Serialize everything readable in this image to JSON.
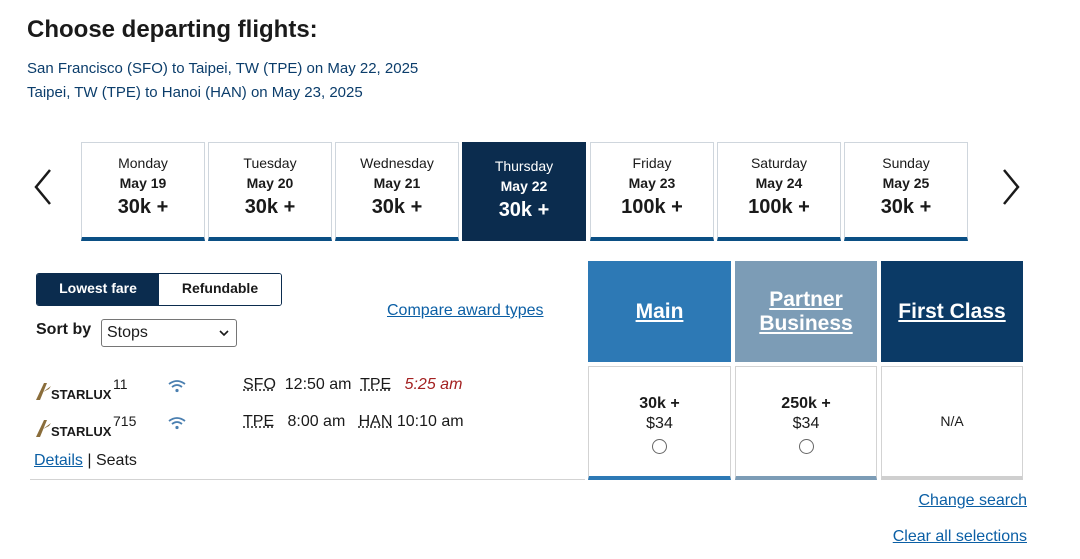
{
  "page": {
    "title": "Choose departing flights:",
    "routes": [
      "San Francisco (SFO) to Taipei, TW (TPE) on May 22, 2025",
      "Taipei, TW (TPE) to Hanoi (HAN) on May 23, 2025"
    ]
  },
  "date_nav": {
    "prev_icon": "chevron-left-icon",
    "next_icon": "chevron-right-icon",
    "selected_index": 3,
    "days": [
      {
        "day": "Monday",
        "date": "May 19",
        "price": "30k +"
      },
      {
        "day": "Tuesday",
        "date": "May 20",
        "price": "30k +"
      },
      {
        "day": "Wednesday",
        "date": "May 21",
        "price": "30k +"
      },
      {
        "day": "Thursday",
        "date": "May 22",
        "price": "30k +"
      },
      {
        "day": "Friday",
        "date": "May 23",
        "price": "100k +"
      },
      {
        "day": "Saturday",
        "date": "May 24",
        "price": "100k +"
      },
      {
        "day": "Sunday",
        "date": "May 25",
        "price": "30k +"
      }
    ]
  },
  "filters": {
    "fare_options": [
      "Lowest fare",
      "Refundable"
    ],
    "active_fare": "Lowest fare",
    "sort_label": "Sort by",
    "sort_value": "Stops"
  },
  "compare_link": "Compare award types",
  "cabins": [
    {
      "label": "Main",
      "color": "#2d79b5"
    },
    {
      "label": "Partner Business",
      "color": "#7c9cb6"
    },
    {
      "label": "First Class",
      "color": "#0b3a66"
    }
  ],
  "flight": {
    "segments": [
      {
        "airline": "STARLUX",
        "flight_number": "11",
        "wifi_icon": "wifi-icon",
        "from": "SFO",
        "depart": "12:50 am",
        "to": "TPE",
        "arrive": "5:25 am"
      },
      {
        "airline": "STARLUX",
        "flight_number": "715",
        "wifi_icon": "wifi-icon",
        "from": "TPE",
        "depart": "8:00 am",
        "to": "HAN",
        "arrive": "10:10 am"
      }
    ],
    "details_link": "Details",
    "separator": "|",
    "seats_text": "Seats",
    "fares": [
      {
        "miles": "30k +",
        "tax": "$34"
      },
      {
        "miles": "250k +",
        "tax": "$34"
      },
      {
        "na": "N/A"
      }
    ]
  },
  "links": {
    "change_search": "Change search",
    "clear_all": "Clear all selections"
  },
  "colors": {
    "selected_day": "#0b2c4e",
    "link": "#0b5fa5",
    "late_arrival": "#a32020"
  }
}
